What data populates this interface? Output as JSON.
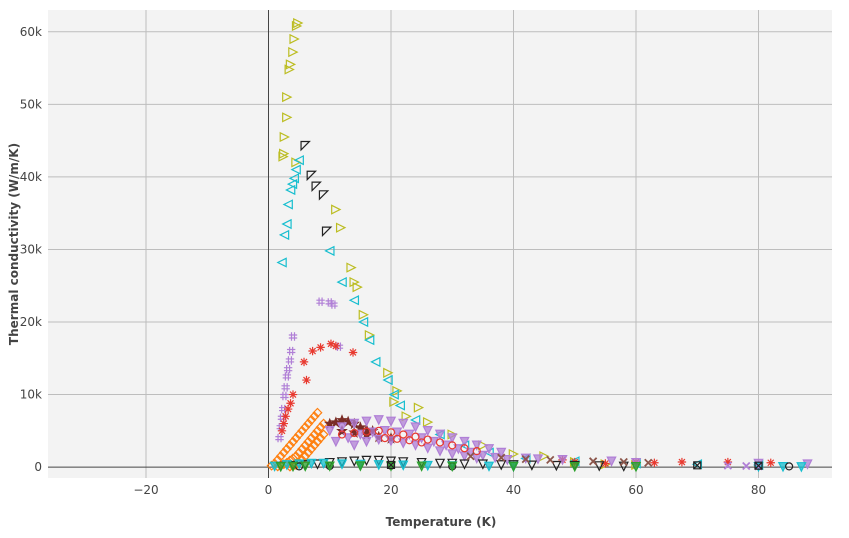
{
  "chart_data": {
    "type": "scatter",
    "title": "",
    "xlabel": "Temperature (K)",
    "ylabel": "Thermal conductivity (W/m/K)",
    "xlim": [
      -36,
      92
    ],
    "ylim": [
      -1500,
      63000
    ],
    "grid": true,
    "legend": "none",
    "x_ticks": [
      -20,
      0,
      20,
      40,
      60,
      80
    ],
    "y_ticks": [
      0,
      10000,
      20000,
      30000,
      40000,
      50000,
      60000
    ],
    "x_tick_labels": [
      "−20",
      "0",
      "20",
      "40",
      "60",
      "80"
    ],
    "y_tick_labels": [
      "0",
      "10k",
      "20k",
      "30k",
      "40k",
      "50k",
      "60k"
    ],
    "colors": {
      "plot_bg": "#f3f3f3",
      "grid": "#bdbdbd",
      "zero_line": "#444444",
      "olive": "#bcbd22",
      "cyan": "#17becf",
      "black": "#222222",
      "purple": "#b07fd6",
      "red": "#e8392f",
      "orange": "#ff7f0e",
      "maroon": "#7b2d26",
      "green": "#2ca02c",
      "brown": "#8c564b"
    },
    "series": [
      {
        "marker": "triangle-right",
        "color": "olive",
        "points": [
          [
            4.8,
            61200
          ],
          [
            4.6,
            60800
          ],
          [
            4.2,
            59000
          ],
          [
            4.0,
            57200
          ],
          [
            3.6,
            55500
          ],
          [
            3.4,
            54800
          ],
          [
            3.0,
            51000
          ],
          [
            3.0,
            48200
          ],
          [
            2.6,
            45500
          ],
          [
            2.5,
            43200
          ],
          [
            2.4,
            42800
          ],
          [
            4.5,
            42000
          ],
          [
            11.0,
            35500
          ],
          [
            11.8,
            33000
          ],
          [
            13.5,
            27500
          ],
          [
            14.0,
            25500
          ],
          [
            14.5,
            24800
          ],
          [
            15.5,
            21000
          ],
          [
            16.5,
            18200
          ],
          [
            19.5,
            13000
          ],
          [
            21.0,
            10500
          ],
          [
            24.5,
            8200
          ],
          [
            20.5,
            9000
          ],
          [
            22.5,
            7000
          ],
          [
            26,
            6200
          ],
          [
            30,
            4500
          ],
          [
            35,
            3000
          ],
          [
            40,
            1800
          ],
          [
            45,
            1500
          ],
          [
            50,
            700
          ],
          [
            55,
            400
          ],
          [
            60,
            300
          ]
        ]
      },
      {
        "marker": "triangle-left",
        "color": "cyan",
        "points": [
          [
            5.0,
            42300
          ],
          [
            4.5,
            41000
          ],
          [
            4.2,
            39800
          ],
          [
            3.9,
            39000
          ],
          [
            3.6,
            38200
          ],
          [
            3.2,
            36200
          ],
          [
            3.0,
            33500
          ],
          [
            2.6,
            32000
          ],
          [
            2.2,
            28200
          ],
          [
            10.0,
            29800
          ],
          [
            12.0,
            25500
          ],
          [
            14.0,
            23000
          ],
          [
            15.5,
            20000
          ],
          [
            16.5,
            17500
          ],
          [
            17.5,
            14500
          ],
          [
            19.5,
            12000
          ],
          [
            20.5,
            10000
          ],
          [
            21.5,
            8500
          ],
          [
            24,
            6500
          ],
          [
            28,
            4500
          ],
          [
            32,
            3000
          ],
          [
            36,
            2000
          ],
          [
            42,
            1200
          ],
          [
            50,
            800
          ],
          [
            60,
            500
          ],
          [
            70,
            400
          ],
          [
            80,
            300
          ]
        ]
      },
      {
        "marker": "triangle-down-left",
        "color": "black",
        "points": [
          [
            6.0,
            44300
          ],
          [
            7.0,
            40200
          ],
          [
            7.8,
            38700
          ],
          [
            9.0,
            37500
          ],
          [
            9.5,
            32500
          ]
        ]
      },
      {
        "marker": "hash",
        "color": "purple",
        "points": [
          [
            4.0,
            18000
          ],
          [
            3.7,
            16000
          ],
          [
            3.5,
            14700
          ],
          [
            3.2,
            13500
          ],
          [
            3.0,
            12500
          ],
          [
            2.8,
            11000
          ],
          [
            2.6,
            9800
          ],
          [
            2.4,
            8000
          ],
          [
            2.2,
            6800
          ],
          [
            8.5,
            22800
          ],
          [
            10.0,
            22700
          ],
          [
            10.6,
            22400
          ],
          [
            11.5,
            16600
          ],
          [
            2.0,
            5500
          ],
          [
            1.8,
            4000
          ]
        ]
      },
      {
        "marker": "asterisk",
        "color": "red",
        "points": [
          [
            4.0,
            10000
          ],
          [
            3.6,
            8800
          ],
          [
            3.2,
            8000
          ],
          [
            2.8,
            7000
          ],
          [
            2.5,
            6000
          ],
          [
            2.2,
            5000
          ],
          [
            5.8,
            14500
          ],
          [
            7.2,
            16000
          ],
          [
            8.5,
            16500
          ],
          [
            10.2,
            17000
          ],
          [
            11.0,
            16700
          ],
          [
            13.8,
            15800
          ],
          [
            6.2,
            12000
          ],
          [
            48,
            1000
          ],
          [
            50,
            700
          ],
          [
            55,
            500
          ],
          [
            60,
            700
          ],
          [
            63,
            600
          ],
          [
            67.5,
            700
          ],
          [
            75,
            700
          ],
          [
            82,
            600
          ]
        ]
      },
      {
        "marker": "diamond-open",
        "color": "orange",
        "points": [
          [
            8,
            7500
          ],
          [
            7.5,
            7000
          ],
          [
            7.0,
            6500
          ],
          [
            6.5,
            6000
          ],
          [
            6.0,
            5500
          ],
          [
            5.5,
            5000
          ],
          [
            5.0,
            4500
          ],
          [
            4.5,
            4000
          ],
          [
            4.0,
            3500
          ],
          [
            3.5,
            3000
          ],
          [
            3.0,
            2500
          ],
          [
            2.5,
            2000
          ],
          [
            2.0,
            1500
          ],
          [
            1.5,
            1000
          ],
          [
            1.0,
            500
          ],
          [
            0.5,
            200
          ],
          [
            9,
            6000
          ],
          [
            8.5,
            5500
          ],
          [
            8,
            5000
          ],
          [
            7.5,
            4500
          ],
          [
            7,
            4000
          ],
          [
            6.5,
            3500
          ],
          [
            6,
            3000
          ],
          [
            5.5,
            2500
          ],
          [
            5,
            2000
          ],
          [
            4.5,
            1500
          ],
          [
            4,
            1200
          ],
          [
            3.5,
            900
          ],
          [
            3,
            600
          ],
          [
            2.5,
            400
          ],
          [
            2,
            200
          ],
          [
            1.5,
            100
          ],
          [
            9,
            4500
          ],
          [
            8.5,
            4000
          ],
          [
            8,
            3500
          ],
          [
            7.5,
            3000
          ],
          [
            7,
            2500
          ],
          [
            6.5,
            2000
          ],
          [
            6,
            1500
          ],
          [
            5.5,
            1000
          ],
          [
            5,
            600
          ],
          [
            4.5,
            300
          ],
          [
            4,
            150
          ],
          [
            3.5,
            80
          ]
        ]
      },
      {
        "marker": "star",
        "color": "maroon",
        "points": [
          [
            10,
            6000
          ],
          [
            11,
            6200
          ],
          [
            12,
            6500
          ],
          [
            13,
            6300
          ],
          [
            14,
            6000
          ],
          [
            15,
            5500
          ],
          [
            16,
            5200
          ],
          [
            17,
            5000
          ],
          [
            12,
            5000
          ],
          [
            14,
            4800
          ],
          [
            16,
            4500
          ],
          [
            18,
            4200
          ],
          [
            20,
            4000
          ]
        ]
      },
      {
        "marker": "triangle-down",
        "color": "purple",
        "points": [
          [
            10,
            5000
          ],
          [
            12,
            5500
          ],
          [
            14,
            6000
          ],
          [
            16,
            6300
          ],
          [
            18,
            6500
          ],
          [
            20,
            6300
          ],
          [
            22,
            6000
          ],
          [
            24,
            5500
          ],
          [
            26,
            5000
          ],
          [
            28,
            4500
          ],
          [
            30,
            4000
          ],
          [
            32,
            3500
          ],
          [
            34,
            3000
          ],
          [
            36,
            2500
          ],
          [
            38,
            2000
          ],
          [
            11,
            3500
          ],
          [
            13,
            4000
          ],
          [
            15,
            4500
          ],
          [
            17,
            4800
          ],
          [
            19,
            5000
          ],
          [
            21,
            4800
          ],
          [
            23,
            4500
          ],
          [
            25,
            4000
          ],
          [
            27,
            3500
          ],
          [
            29,
            3000
          ],
          [
            31,
            2500
          ],
          [
            33,
            2000
          ],
          [
            35,
            1600
          ],
          [
            37,
            1300
          ],
          [
            39,
            1000
          ],
          [
            14,
            3000
          ],
          [
            16,
            3500
          ],
          [
            18,
            3800
          ],
          [
            20,
            3600
          ],
          [
            22,
            3300
          ],
          [
            24,
            3000
          ],
          [
            26,
            2600
          ],
          [
            28,
            2200
          ],
          [
            30,
            1800
          ],
          [
            32,
            1500
          ],
          [
            34,
            1200
          ],
          [
            42,
            1200
          ],
          [
            44,
            1100
          ],
          [
            48,
            1000
          ],
          [
            56,
            800
          ],
          [
            60,
            600
          ],
          [
            80,
            500
          ],
          [
            88,
            400
          ]
        ]
      },
      {
        "marker": "circle-open",
        "color": "red",
        "points": [
          [
            12,
            4500
          ],
          [
            14,
            4700
          ],
          [
            16,
            4900
          ],
          [
            18,
            5000
          ],
          [
            20,
            4800
          ],
          [
            22,
            4500
          ],
          [
            24,
            4200
          ],
          [
            26,
            3800
          ],
          [
            28,
            3400
          ],
          [
            30,
            3000
          ],
          [
            32,
            2600
          ],
          [
            34,
            2200
          ],
          [
            19,
            4000
          ],
          [
            21,
            3900
          ],
          [
            23,
            3700
          ],
          [
            25,
            3400
          ]
        ]
      },
      {
        "marker": "triangle-down-open",
        "color": "black",
        "points": [
          [
            2,
            100
          ],
          [
            4,
            200
          ],
          [
            6,
            300
          ],
          [
            8,
            400
          ],
          [
            10,
            600
          ],
          [
            12,
            700
          ],
          [
            14,
            800
          ],
          [
            16,
            900
          ],
          [
            18,
            900
          ],
          [
            20,
            800
          ],
          [
            22,
            700
          ],
          [
            25,
            600
          ],
          [
            28,
            500
          ],
          [
            30,
            500
          ],
          [
            32,
            400
          ],
          [
            35,
            400
          ],
          [
            38,
            300
          ],
          [
            40,
            300
          ],
          [
            43,
            250
          ],
          [
            47,
            200
          ],
          [
            50,
            200
          ],
          [
            54,
            150
          ],
          [
            58,
            100
          ]
        ]
      },
      {
        "marker": "triangle-down",
        "color": "cyan",
        "points": [
          [
            1,
            100
          ],
          [
            3,
            300
          ],
          [
            5,
            400
          ],
          [
            7,
            500
          ],
          [
            9,
            500
          ],
          [
            12,
            400
          ],
          [
            15,
            350
          ],
          [
            18,
            300
          ],
          [
            22,
            250
          ],
          [
            26,
            200
          ],
          [
            30,
            150
          ],
          [
            36,
            100
          ],
          [
            40,
            80
          ],
          [
            80,
            50
          ],
          [
            84,
            40
          ],
          [
            87,
            30
          ]
        ]
      },
      {
        "marker": "x",
        "color": "brown",
        "points": [
          [
            33,
            1500
          ],
          [
            38,
            1300
          ],
          [
            42,
            1100
          ],
          [
            46,
            1000
          ],
          [
            53,
            800
          ],
          [
            58,
            700
          ],
          [
            62,
            600
          ]
        ]
      },
      {
        "marker": "x",
        "color": "purple",
        "points": [
          [
            75,
            200
          ],
          [
            78,
            150
          ],
          [
            80,
            100
          ]
        ]
      },
      {
        "marker": "circle-open",
        "color": "black",
        "points": [
          [
            85,
            100
          ],
          [
            5,
            100
          ],
          [
            10,
            150
          ],
          [
            20,
            200
          ],
          [
            30,
            100
          ]
        ]
      },
      {
        "marker": "triangle-down",
        "color": "green",
        "points": [
          [
            2,
            50
          ],
          [
            4,
            80
          ],
          [
            6,
            100
          ],
          [
            10,
            120
          ],
          [
            15,
            140
          ],
          [
            20,
            130
          ],
          [
            25,
            110
          ],
          [
            30,
            90
          ],
          [
            40,
            70
          ],
          [
            50,
            50
          ],
          [
            60,
            40
          ]
        ]
      },
      {
        "marker": "square-x",
        "color": "black",
        "points": [
          [
            20,
            300
          ],
          [
            70,
            250
          ],
          [
            80,
            200
          ]
        ]
      }
    ]
  }
}
